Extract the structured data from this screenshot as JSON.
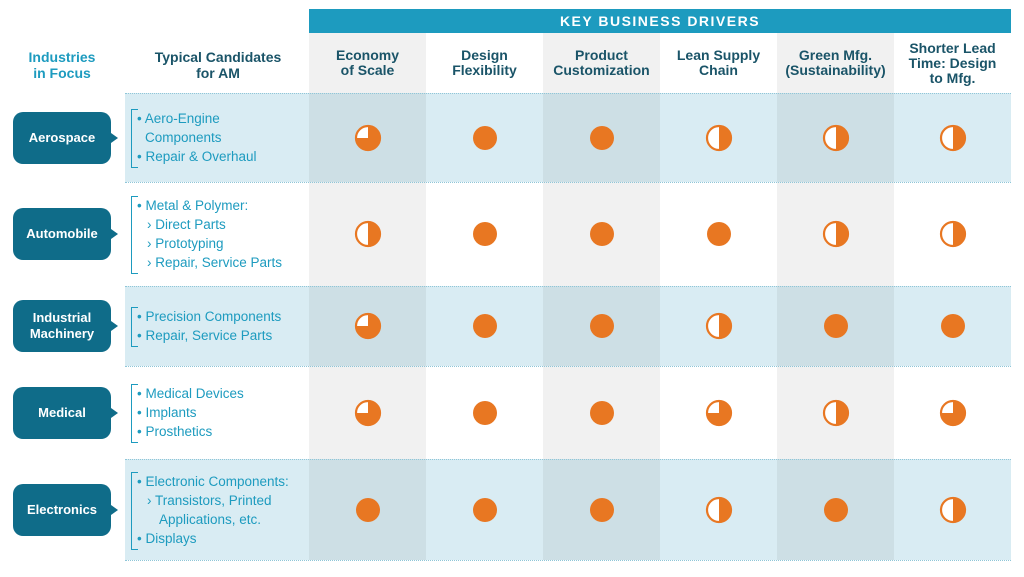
{
  "header_band": "KEY BUSINESS DRIVERS",
  "left_headers": {
    "industries": "Industries\nin Focus",
    "candidates": "Typical Candidates\nfor AM"
  },
  "drivers": [
    "Economy\nof Scale",
    "Design\nFlexibility",
    "Product\nCustomization",
    "Lean Supply\nChain",
    "Green Mfg.\n(Sustainability)",
    "Shorter Lead\nTime: Design\nto Mfg."
  ],
  "rows": [
    {
      "industry": "Aerospace",
      "candidates": [
        {
          "text": "• Aero-Engine",
          "kind": "bullet"
        },
        {
          "text": "Components",
          "kind": "cont"
        },
        {
          "text": "• Repair & Overhaul",
          "kind": "bullet"
        }
      ],
      "ratings": [
        0.75,
        1,
        1,
        0.5,
        0.5,
        0.5
      ]
    },
    {
      "industry": "Automobile",
      "candidates": [
        {
          "text": "• Metal & Polymer:",
          "kind": "bullet"
        },
        {
          "text": "› Direct Parts",
          "kind": "sub"
        },
        {
          "text": "› Prototyping",
          "kind": "sub"
        },
        {
          "text": "› Repair, Service Parts",
          "kind": "sub"
        }
      ],
      "ratings": [
        0.5,
        1,
        1,
        1,
        0.5,
        0.5
      ]
    },
    {
      "industry": "Industrial\nMachinery",
      "candidates": [
        {
          "text": "• Precision Components",
          "kind": "bullet"
        },
        {
          "text": "• Repair, Service Parts",
          "kind": "bullet"
        }
      ],
      "ratings": [
        0.75,
        1,
        1,
        0.5,
        1,
        1
      ]
    },
    {
      "industry": "Medical",
      "candidates": [
        {
          "text": "• Medical Devices",
          "kind": "bullet"
        },
        {
          "text": "• Implants",
          "kind": "bullet"
        },
        {
          "text": "• Prosthetics",
          "kind": "bullet"
        }
      ],
      "ratings": [
        0.75,
        1,
        1,
        0.75,
        0.5,
        0.75
      ]
    },
    {
      "industry": "Electronics",
      "candidates": [
        {
          "text": "• Electronic Components:",
          "kind": "bullet"
        },
        {
          "text": "› Transistors, Printed",
          "kind": "sub"
        },
        {
          "text": "Applications, etc.",
          "kind": "cont2"
        },
        {
          "text": "• Displays",
          "kind": "bullet"
        }
      ],
      "ratings": [
        1,
        1,
        1,
        0.5,
        1,
        0.5
      ]
    }
  ],
  "colors": {
    "accent": "#e87722",
    "band": "#1d9bbf",
    "pill": "#0f6c89",
    "row_shade": "#d9ecf3"
  }
}
